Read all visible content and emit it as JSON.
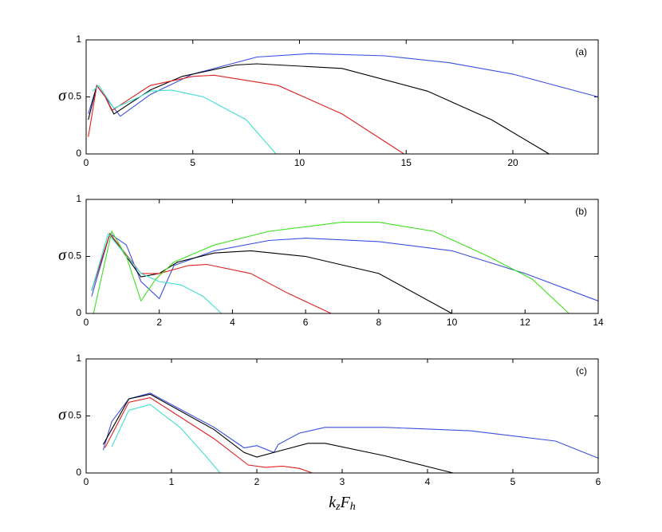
{
  "chart_data": [
    {
      "type": "line",
      "label": "(a)",
      "ylabel": "σ",
      "xlim": [
        0,
        24
      ],
      "xticks": [
        0,
        5,
        10,
        15,
        20
      ],
      "ylim": [
        0,
        1
      ],
      "yticks": [
        0,
        0.5,
        1
      ],
      "series": [
        {
          "color": "#3b4fe0",
          "x": [
            0.1,
            0.5,
            0.9,
            1.6,
            3,
            5,
            8,
            10.5,
            14,
            17,
            20,
            24
          ],
          "values": [
            0.35,
            0.6,
            0.5,
            0.33,
            0.52,
            0.7,
            0.85,
            0.88,
            0.86,
            0.8,
            0.7,
            0.5
          ]
        },
        {
          "color": "#000000",
          "x": [
            0.1,
            0.5,
            0.9,
            1.3,
            3,
            4.5,
            7,
            8,
            12,
            16,
            19,
            21.7
          ],
          "values": [
            0.3,
            0.6,
            0.5,
            0.35,
            0.56,
            0.68,
            0.78,
            0.79,
            0.75,
            0.55,
            0.3,
            0
          ]
        },
        {
          "color": "#e02020",
          "x": [
            0.1,
            0.5,
            0.9,
            1.2,
            3,
            5,
            6,
            9,
            12,
            14.9
          ],
          "values": [
            0.15,
            0.6,
            0.5,
            0.38,
            0.6,
            0.68,
            0.69,
            0.6,
            0.35,
            0
          ]
        },
        {
          "color": "#40e0d0",
          "x": [
            0.3,
            0.6,
            1.3,
            2.5,
            3,
            4,
            5.5,
            7.5,
            8.9
          ],
          "values": [
            0.55,
            0.6,
            0.4,
            0.5,
            0.55,
            0.56,
            0.5,
            0.3,
            0
          ]
        }
      ]
    },
    {
      "type": "line",
      "label": "(b)",
      "ylabel": "σ",
      "xlim": [
        0,
        14
      ],
      "xticks": [
        0,
        2,
        4,
        6,
        8,
        10,
        12,
        14
      ],
      "ylim": [
        0,
        1
      ],
      "yticks": [
        0,
        0.5,
        1
      ],
      "series": [
        {
          "color": "#3b4fe0",
          "x": [
            0.15,
            0.65,
            1.1,
            1.5,
            2,
            2.4,
            3.5,
            5,
            6,
            8,
            10,
            12,
            14
          ],
          "values": [
            0.15,
            0.7,
            0.6,
            0.28,
            0.13,
            0.42,
            0.55,
            0.64,
            0.66,
            0.63,
            0.55,
            0.35,
            0.11
          ]
        },
        {
          "color": "#000000",
          "x": [
            0.15,
            0.65,
            1.5,
            2,
            2.5,
            3.5,
            4.5,
            6,
            8,
            10
          ],
          "values": [
            0.2,
            0.7,
            0.32,
            0.35,
            0.45,
            0.53,
            0.55,
            0.5,
            0.35,
            0
          ]
        },
        {
          "color": "#e02020",
          "x": [
            0.15,
            0.65,
            1.5,
            2,
            2.8,
            3.3,
            4.5,
            5.5,
            6.7
          ],
          "values": [
            0.2,
            0.7,
            0.35,
            0.35,
            0.42,
            0.43,
            0.35,
            0.18,
            0
          ]
        },
        {
          "color": "#40e0d0",
          "x": [
            0.15,
            0.6,
            1.5,
            2,
            2.6,
            3.2,
            3.7
          ],
          "values": [
            0.2,
            0.7,
            0.35,
            0.28,
            0.25,
            0.15,
            0
          ]
        },
        {
          "color": "#40e020",
          "x": [
            0.2,
            0.7,
            1.1,
            1.5,
            1.9,
            2.4,
            3.5,
            5,
            7,
            8,
            9.5,
            11,
            12.2,
            13.2
          ],
          "values": [
            0,
            0.72,
            0.5,
            0.11,
            0.3,
            0.45,
            0.6,
            0.72,
            0.8,
            0.8,
            0.72,
            0.5,
            0.3,
            0
          ]
        }
      ]
    },
    {
      "type": "line",
      "label": "(c)",
      "ylabel": "σ",
      "xlabel": [
        "k",
        "z",
        "F",
        "h"
      ],
      "xlim": [
        0,
        6
      ],
      "xticks": [
        0,
        1,
        2,
        3,
        4,
        5,
        6
      ],
      "ylim": [
        0,
        1
      ],
      "yticks": [
        0,
        0.5,
        1
      ],
      "series": [
        {
          "color": "#3b4fe0",
          "x": [
            0.2,
            0.3,
            0.5,
            0.75,
            1,
            1.5,
            1.85,
            2,
            2.2,
            2.25,
            2.5,
            2.8,
            3.5,
            4.5,
            5.5,
            6
          ],
          "values": [
            0.2,
            0.45,
            0.65,
            0.7,
            0.6,
            0.4,
            0.22,
            0.24,
            0.18,
            0.25,
            0.35,
            0.4,
            0.4,
            0.37,
            0.28,
            0.13
          ]
        },
        {
          "color": "#000000",
          "x": [
            0.2,
            0.5,
            0.75,
            1.5,
            1.85,
            2,
            2.3,
            2.6,
            2.8,
            3.5,
            4.3
          ],
          "values": [
            0.25,
            0.65,
            0.69,
            0.38,
            0.18,
            0.14,
            0.2,
            0.26,
            0.26,
            0.15,
            0
          ]
        },
        {
          "color": "#e02020",
          "x": [
            0.22,
            0.5,
            0.75,
            1.5,
            1.9,
            2.1,
            2.3,
            2.5,
            2.65
          ],
          "values": [
            0.22,
            0.62,
            0.66,
            0.3,
            0.07,
            0.05,
            0.06,
            0.04,
            0
          ]
        },
        {
          "color": "#40e0d0",
          "x": [
            0.3,
            0.5,
            0.75,
            1.1,
            1.4,
            1.57
          ],
          "values": [
            0.23,
            0.55,
            0.6,
            0.4,
            0.15,
            0
          ]
        }
      ]
    }
  ]
}
